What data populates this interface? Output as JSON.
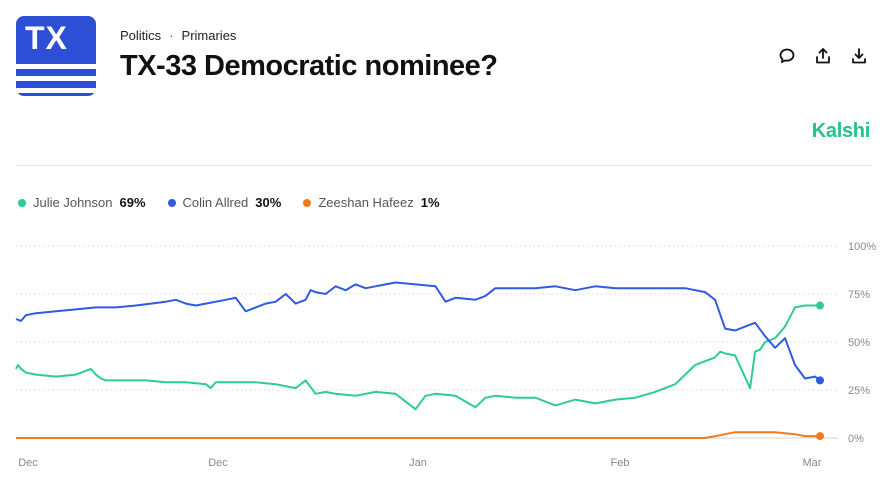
{
  "logo": {
    "text": "TX"
  },
  "breadcrumb": {
    "category": "Politics",
    "separator": "·",
    "subcategory": "Primaries"
  },
  "title": "TX-33 Democratic nominee?",
  "actions": [
    {
      "name": "comment-icon"
    },
    {
      "name": "share-icon"
    },
    {
      "name": "download-icon"
    }
  ],
  "brand": "Kalshi",
  "colors": {
    "julie": "#2ecc8f",
    "colin": "#2f5be0",
    "zeeshan": "#f57a1b",
    "brand": "#21c48b",
    "logo": "#2c4fd6"
  },
  "legend": [
    {
      "name": "Julie Johnson",
      "value": "69%",
      "color": "#2ecc8f"
    },
    {
      "name": "Colin Allred",
      "value": "30%",
      "color": "#2f5be0"
    },
    {
      "name": "Zeeshan Hafeez",
      "value": "1%",
      "color": "#f57a1b"
    }
  ],
  "chart_data": {
    "type": "line",
    "title": "",
    "xlabel": "",
    "ylabel": "",
    "ylim": [
      0,
      100
    ],
    "y_ticks": [
      "0%",
      "25%",
      "50%",
      "75%",
      "100%"
    ],
    "x_ticks": [
      "Dec",
      "Dec",
      "Jan",
      "Feb",
      "Mar"
    ],
    "grid": "dotted horizontal",
    "series": [
      {
        "name": "Julie Johnson",
        "color": "#2ecc8f",
        "x": [
          0,
          2,
          5,
          10,
          20,
          40,
          60,
          75,
          80,
          85,
          90,
          100,
          110,
          130,
          150,
          170,
          190,
          195,
          200,
          220,
          240,
          260,
          280,
          290,
          300,
          310,
          320,
          340,
          360,
          380,
          400,
          410,
          420,
          440,
          460,
          470,
          480,
          500,
          520,
          540,
          560,
          580,
          600,
          620,
          640,
          660,
          680,
          690,
          700,
          705,
          710,
          720,
          735,
          740,
          745,
          750,
          760,
          770,
          780,
          790,
          800,
          805
        ],
        "y": [
          36,
          38,
          36,
          34,
          33,
          32,
          33,
          36,
          33,
          31,
          30,
          30,
          30,
          30,
          29,
          29,
          28,
          26,
          29,
          29,
          29,
          28,
          26,
          30,
          23,
          24,
          23,
          22,
          24,
          23,
          15,
          22,
          23,
          22,
          16,
          21,
          22,
          21,
          21,
          17,
          20,
          18,
          20,
          21,
          24,
          28,
          38,
          40,
          42,
          45,
          44,
          43,
          26,
          45,
          46,
          50,
          52,
          58,
          68,
          69,
          69,
          69
        ]
      },
      {
        "name": "Colin Allred",
        "color": "#2f5be0",
        "x": [
          0,
          5,
          10,
          20,
          40,
          60,
          80,
          100,
          120,
          150,
          160,
          170,
          180,
          190,
          200,
          210,
          220,
          230,
          240,
          250,
          260,
          270,
          280,
          290,
          295,
          300,
          310,
          320,
          330,
          340,
          350,
          360,
          370,
          380,
          400,
          420,
          430,
          440,
          460,
          470,
          480,
          500,
          520,
          540,
          560,
          580,
          600,
          620,
          640,
          660,
          670,
          680,
          690,
          700,
          710,
          720,
          730,
          740,
          750,
          760,
          770,
          780,
          790,
          800,
          805
        ],
        "y": [
          62,
          61,
          64,
          65,
          66,
          67,
          68,
          68,
          69,
          71,
          72,
          70,
          69,
          70,
          71,
          72,
          73,
          66,
          68,
          70,
          71,
          75,
          70,
          72,
          77,
          76,
          75,
          79,
          77,
          80,
          78,
          79,
          80,
          81,
          80,
          79,
          71,
          73,
          72,
          74,
          78,
          78,
          78,
          79,
          77,
          79,
          78,
          78,
          78,
          78,
          78,
          77,
          76,
          72,
          57,
          56,
          58,
          60,
          53,
          47,
          52,
          38,
          31,
          32,
          30
        ]
      },
      {
        "name": "Zeeshan Hafeez",
        "color": "#f57a1b",
        "x": [
          0,
          100,
          200,
          300,
          400,
          500,
          600,
          690,
          700,
          710,
          720,
          740,
          760,
          780,
          790,
          800,
          805
        ],
        "y": [
          0,
          0,
          0,
          0,
          0,
          0,
          0,
          0,
          1,
          2,
          3,
          3,
          3,
          2,
          1,
          1,
          1
        ]
      }
    ]
  }
}
